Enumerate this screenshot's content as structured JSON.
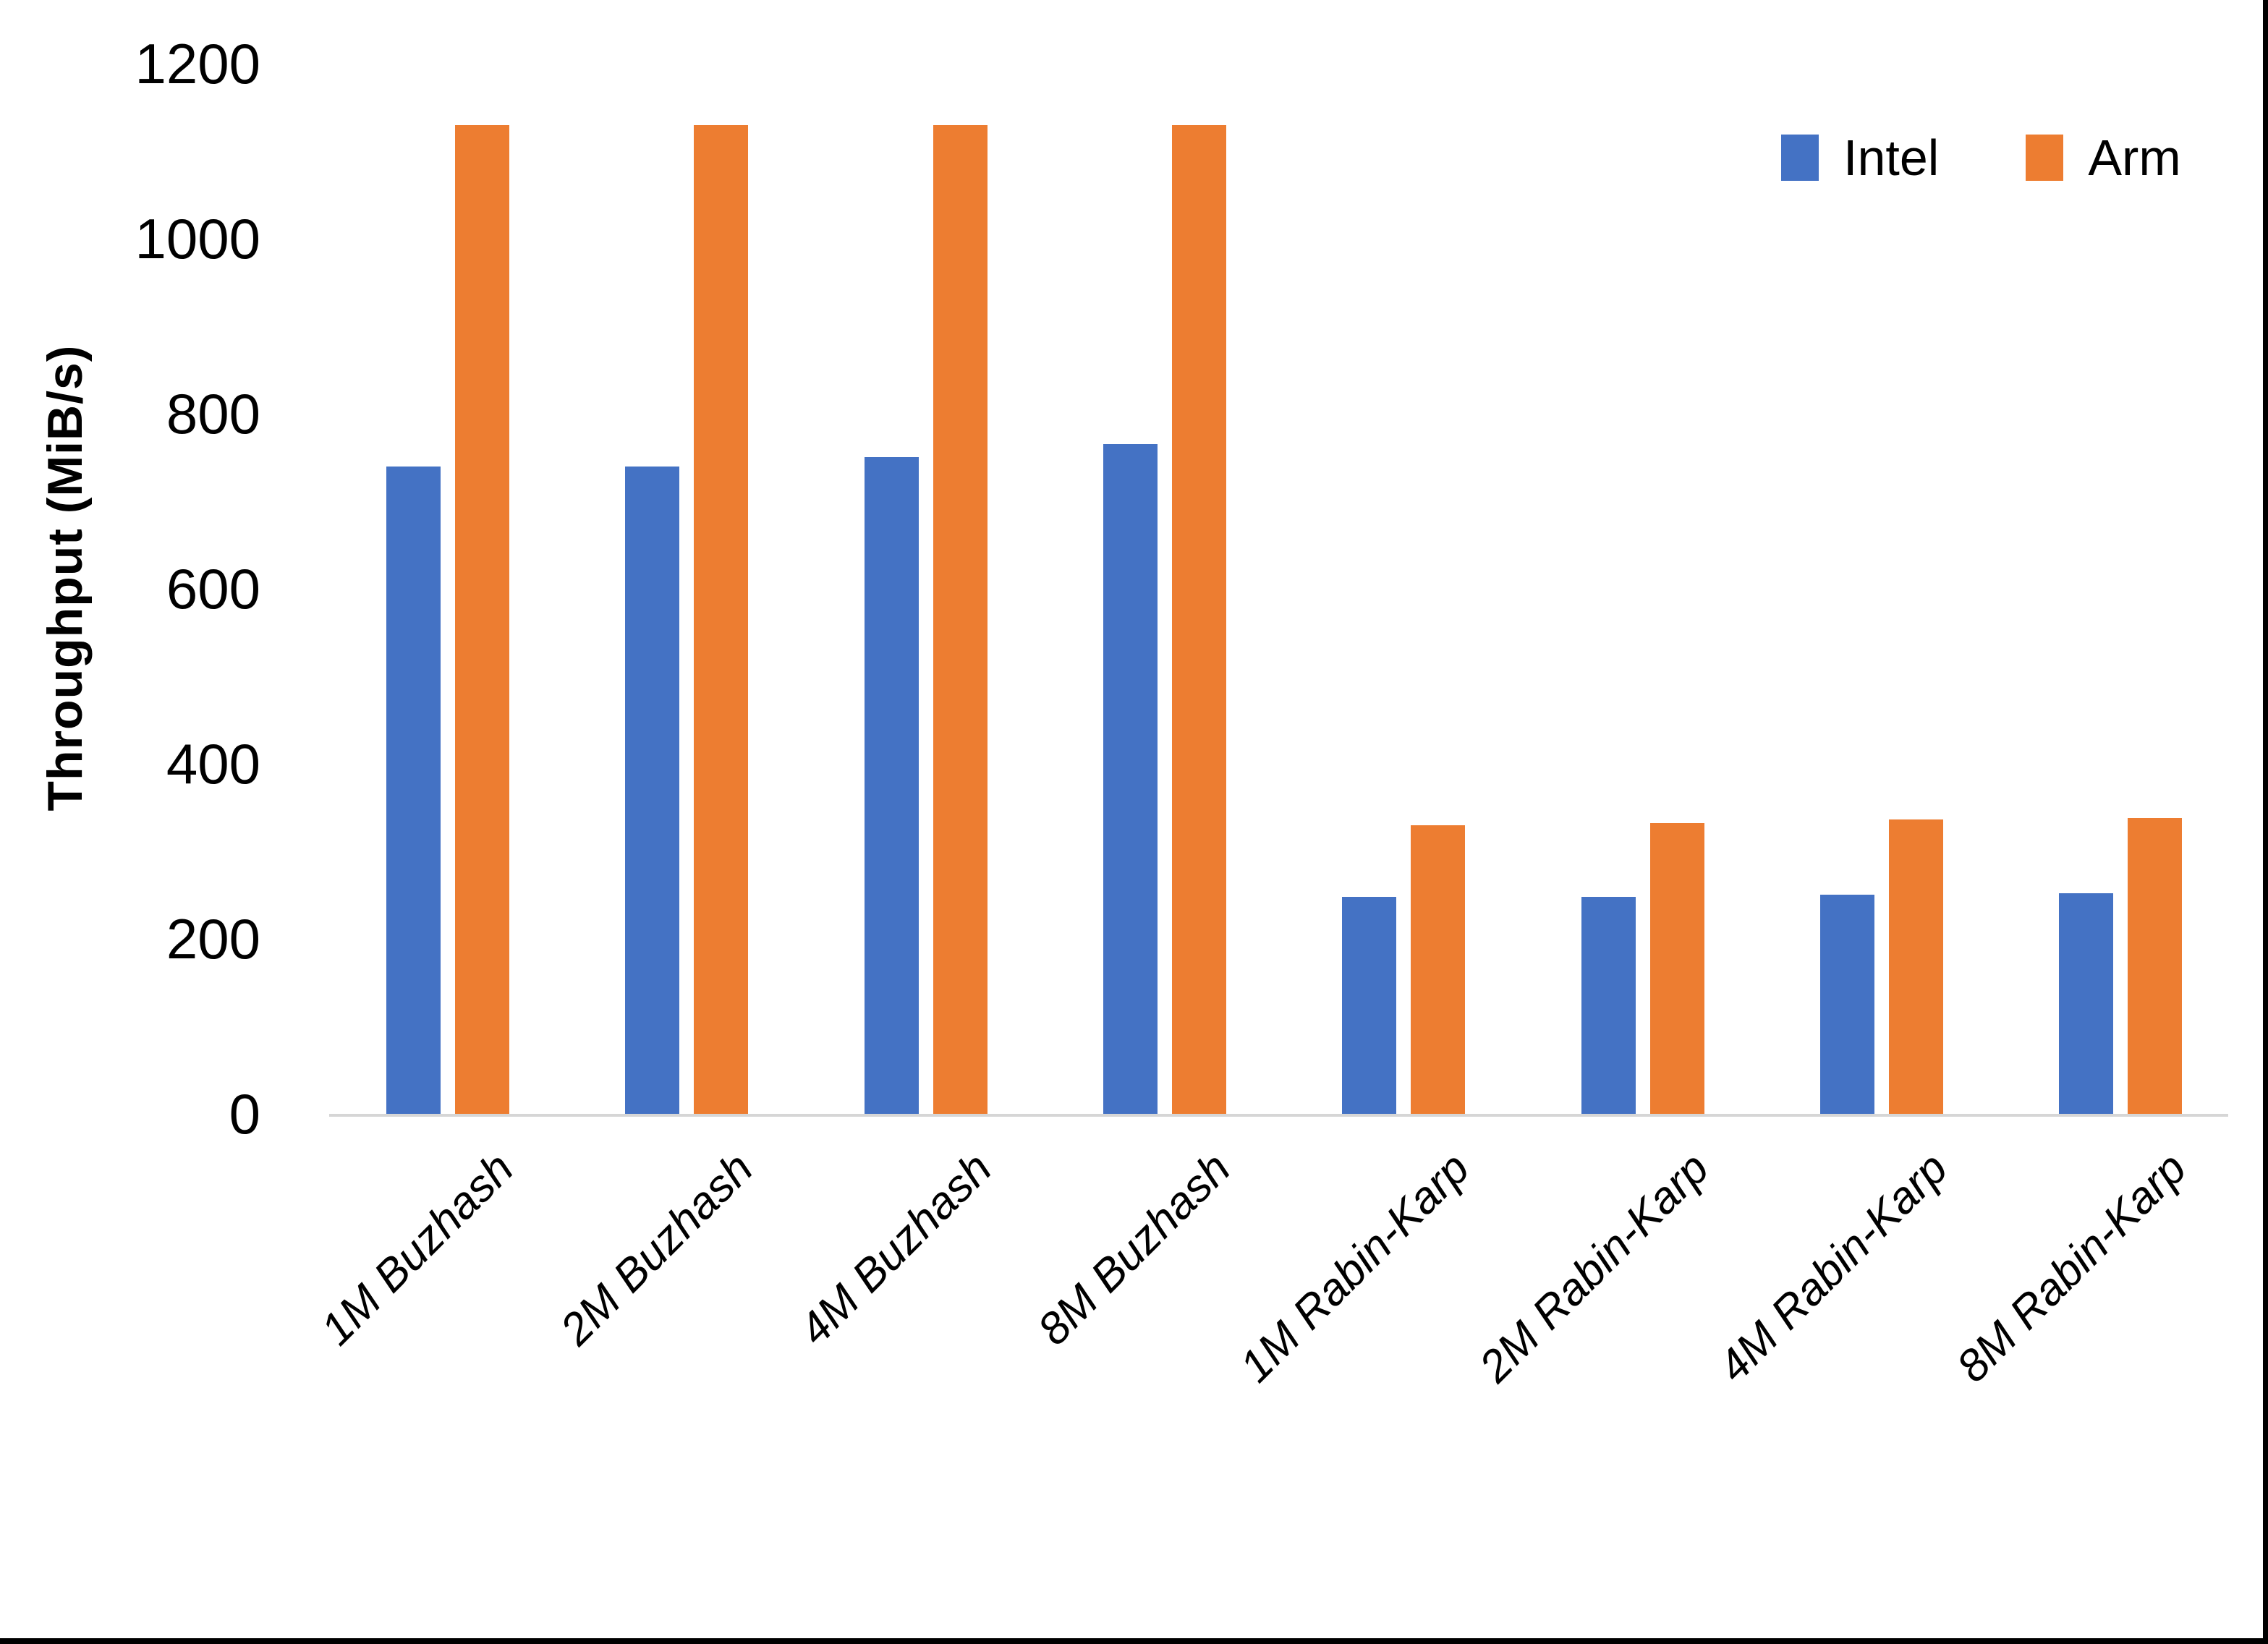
{
  "chart_data": {
    "type": "bar",
    "title": "",
    "categories": [
      "1M Buzhash",
      "2M Buzhash",
      "4M Buzhash",
      "8M Buzhash",
      "1M Rabin-Karp",
      "2M Rabin-Karp",
      "4M Rabin-Karp",
      "8M Rabin-Karp"
    ],
    "series": [
      {
        "name": "Intel",
        "color": "#4472C4",
        "values": [
          740,
          740,
          750,
          765,
          248,
          248,
          250,
          252
        ]
      },
      {
        "name": "Arm",
        "color": "#ED7D31",
        "values": [
          1130,
          1130,
          1130,
          1130,
          330,
          332,
          336,
          338
        ]
      }
    ],
    "xlabel": "",
    "ylabel": "Throughput (MiB/s)",
    "ylim": [
      0,
      1200
    ],
    "yticks": [
      0,
      200,
      400,
      600,
      800,
      1000,
      1200
    ],
    "grid": false,
    "legend_position": "top-right",
    "axis_line_color": "#d6d6d6",
    "text_color": "#000000"
  }
}
